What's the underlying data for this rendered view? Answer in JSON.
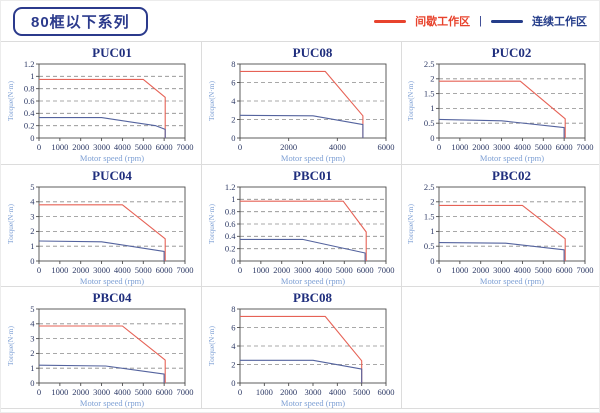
{
  "page": {
    "title": "80框以下系列"
  },
  "legend": {
    "items": [
      {
        "label": "间歇工作区",
        "color": "#e8432d"
      },
      {
        "label": "连续工作区",
        "color": "#253d8a"
      }
    ],
    "separator": "|"
  },
  "colors": {
    "title_navy": "#1f2e7d",
    "axis_label_blue": "#7d9fd4",
    "tick_text": "#2f3b66",
    "plot_border": "#4d4d4d",
    "gridline": "#8c8c8c",
    "red_line": "#e66256",
    "blue_line": "#54639e"
  },
  "chart_data": [
    {
      "type": "line",
      "title": "PUC01",
      "xlabel": "Motor speed (rpm)",
      "ylabel": "Torque(N·m)",
      "xlim": [
        0,
        7000
      ],
      "ylim": [
        0,
        1.2
      ],
      "xticks": [
        0,
        1000,
        2000,
        3000,
        4000,
        5000,
        6000,
        7000
      ],
      "yticks": [
        0,
        0.2,
        0.4,
        0.6,
        0.8,
        1,
        1.2
      ],
      "grid": "horizontal-dashed",
      "legend_position": "none",
      "series": [
        {
          "name": "间歇工作区",
          "color": "#e66256",
          "points": [
            [
              0,
              0.95
            ],
            [
              5000,
              0.95
            ],
            [
              6050,
              0.66
            ],
            [
              6050,
              0
            ]
          ]
        },
        {
          "name": "连续工作区",
          "color": "#54639e",
          "points": [
            [
              0,
              0.33
            ],
            [
              3000,
              0.33
            ],
            [
              5600,
              0.2
            ],
            [
              6050,
              0.14
            ],
            [
              6050,
              0
            ]
          ]
        }
      ]
    },
    {
      "type": "line",
      "title": "PUC08",
      "xlabel": "Motor speed (rpm)",
      "ylabel": "Torque(N·m)",
      "xlim": [
        0,
        6000
      ],
      "ylim": [
        0,
        8
      ],
      "xticks": [
        0,
        2000,
        4000,
        6000
      ],
      "yticks": [
        0,
        2,
        4,
        6,
        8
      ],
      "grid": "horizontal-dashed",
      "legend_position": "none",
      "series": [
        {
          "name": "间歇工作区",
          "color": "#e66256",
          "points": [
            [
              0,
              7.2
            ],
            [
              3500,
              7.2
            ],
            [
              5050,
              2.4
            ],
            [
              5050,
              0
            ]
          ]
        },
        {
          "name": "连续工作区",
          "color": "#54639e",
          "points": [
            [
              0,
              2.45
            ],
            [
              3000,
              2.4
            ],
            [
              5050,
              1.45
            ],
            [
              5050,
              0
            ]
          ]
        }
      ]
    },
    {
      "type": "line",
      "title": "PUC02",
      "xlabel": "Motor speed (rpm)",
      "ylabel": "Torque(N·m)",
      "xlim": [
        0,
        7000
      ],
      "ylim": [
        0,
        2.5
      ],
      "xticks": [
        0,
        1000,
        2000,
        3000,
        4000,
        5000,
        6000,
        7000
      ],
      "yticks": [
        0,
        0.5,
        1,
        1.5,
        2,
        2.5
      ],
      "grid": "horizontal-dashed",
      "legend_position": "none",
      "series": [
        {
          "name": "间歇工作区",
          "color": "#e66256",
          "points": [
            [
              0,
              1.92
            ],
            [
              3900,
              1.92
            ],
            [
              6050,
              0.65
            ],
            [
              6050,
              0
            ]
          ]
        },
        {
          "name": "连续工作区",
          "color": "#54639e",
          "points": [
            [
              0,
              0.63
            ],
            [
              3000,
              0.58
            ],
            [
              6000,
              0.35
            ],
            [
              6000,
              0
            ]
          ]
        }
      ]
    },
    {
      "type": "line",
      "title": "PUC04",
      "xlabel": "Motor speed (rpm)",
      "ylabel": "Torque(N·m)",
      "xlim": [
        0,
        7000
      ],
      "ylim": [
        0,
        5
      ],
      "xticks": [
        0,
        1000,
        2000,
        3000,
        4000,
        5000,
        6000,
        7000
      ],
      "yticks": [
        0,
        1,
        2,
        3,
        4,
        5
      ],
      "grid": "horizontal-dashed",
      "legend_position": "none",
      "series": [
        {
          "name": "间歇工作区",
          "color": "#e66256",
          "points": [
            [
              0,
              3.8
            ],
            [
              4000,
              3.8
            ],
            [
              6050,
              1.5
            ],
            [
              6050,
              0
            ]
          ]
        },
        {
          "name": "连续工作区",
          "color": "#54639e",
          "points": [
            [
              0,
              1.35
            ],
            [
              3000,
              1.3
            ],
            [
              6000,
              0.65
            ],
            [
              6000,
              0
            ]
          ]
        }
      ]
    },
    {
      "type": "line",
      "title": "PBC01",
      "xlabel": "Motor speed (rpm)",
      "ylabel": "Torque(N·m)",
      "xlim": [
        0,
        7000
      ],
      "ylim": [
        0,
        1.2
      ],
      "xticks": [
        0,
        1000,
        2000,
        3000,
        4000,
        5000,
        6000,
        7000
      ],
      "yticks": [
        0,
        0.2,
        0.4,
        0.6,
        0.8,
        1,
        1.2
      ],
      "grid": "horizontal-dashed",
      "legend_position": "none",
      "series": [
        {
          "name": "间歇工作区",
          "color": "#e66256",
          "points": [
            [
              0,
              0.97
            ],
            [
              4950,
              0.97
            ],
            [
              6050,
              0.47
            ],
            [
              6050,
              0
            ]
          ]
        },
        {
          "name": "连续工作区",
          "color": "#54639e",
          "points": [
            [
              0,
              0.35
            ],
            [
              3000,
              0.35
            ],
            [
              6000,
              0.13
            ],
            [
              6000,
              0
            ]
          ]
        }
      ]
    },
    {
      "type": "line",
      "title": "PBC02",
      "xlabel": "Motor speed (rpm)",
      "ylabel": "Torque(N·m)",
      "xlim": [
        0,
        7000
      ],
      "ylim": [
        0,
        2.5
      ],
      "xticks": [
        0,
        1000,
        2000,
        3000,
        4000,
        5000,
        6000,
        7000
      ],
      "yticks": [
        0,
        0.5,
        1,
        1.5,
        2,
        2.5
      ],
      "grid": "horizontal-dashed",
      "legend_position": "none",
      "series": [
        {
          "name": "间歇工作区",
          "color": "#e66256",
          "points": [
            [
              0,
              1.88
            ],
            [
              4000,
              1.88
            ],
            [
              6050,
              0.75
            ],
            [
              6050,
              0
            ]
          ]
        },
        {
          "name": "连续工作区",
          "color": "#54639e",
          "points": [
            [
              0,
              0.62
            ],
            [
              3200,
              0.6
            ],
            [
              6000,
              0.38
            ],
            [
              6000,
              0
            ]
          ]
        }
      ]
    },
    {
      "type": "line",
      "title": "PBC04",
      "xlabel": "Motor speed (rpm)",
      "ylabel": "Torque(N·m)",
      "xlim": [
        0,
        7000
      ],
      "ylim": [
        0,
        5
      ],
      "xticks": [
        0,
        1000,
        2000,
        3000,
        4000,
        5000,
        6000,
        7000
      ],
      "yticks": [
        0,
        1,
        2,
        3,
        4,
        5
      ],
      "grid": "horizontal-dashed",
      "legend_position": "none",
      "series": [
        {
          "name": "间歇工作区",
          "color": "#e66256",
          "points": [
            [
              0,
              3.85
            ],
            [
              4000,
              3.85
            ],
            [
              6050,
              1.55
            ],
            [
              6050,
              0
            ]
          ]
        },
        {
          "name": "连续工作区",
          "color": "#54639e",
          "points": [
            [
              0,
              1.2
            ],
            [
              3200,
              1.15
            ],
            [
              6000,
              0.6
            ],
            [
              6000,
              0
            ]
          ]
        }
      ]
    },
    {
      "type": "line",
      "title": "PBC08",
      "xlabel": "Motor speed (rpm)",
      "ylabel": "Torque(N·m)",
      "xlim": [
        0,
        6000
      ],
      "ylim": [
        0,
        8
      ],
      "xticks": [
        0,
        1000,
        2000,
        3000,
        4000,
        5000,
        6000
      ],
      "yticks": [
        0,
        2,
        4,
        6,
        8
      ],
      "grid": "horizontal-dashed",
      "legend_position": "none",
      "series": [
        {
          "name": "间歇工作区",
          "color": "#e66256",
          "points": [
            [
              0,
              7.2
            ],
            [
              3500,
              7.2
            ],
            [
              5000,
              2.4
            ],
            [
              5000,
              0
            ]
          ]
        },
        {
          "name": "连续工作区",
          "color": "#54639e",
          "points": [
            [
              0,
              2.45
            ],
            [
              3000,
              2.45
            ],
            [
              5000,
              1.5
            ],
            [
              5000,
              0
            ]
          ]
        }
      ]
    }
  ]
}
